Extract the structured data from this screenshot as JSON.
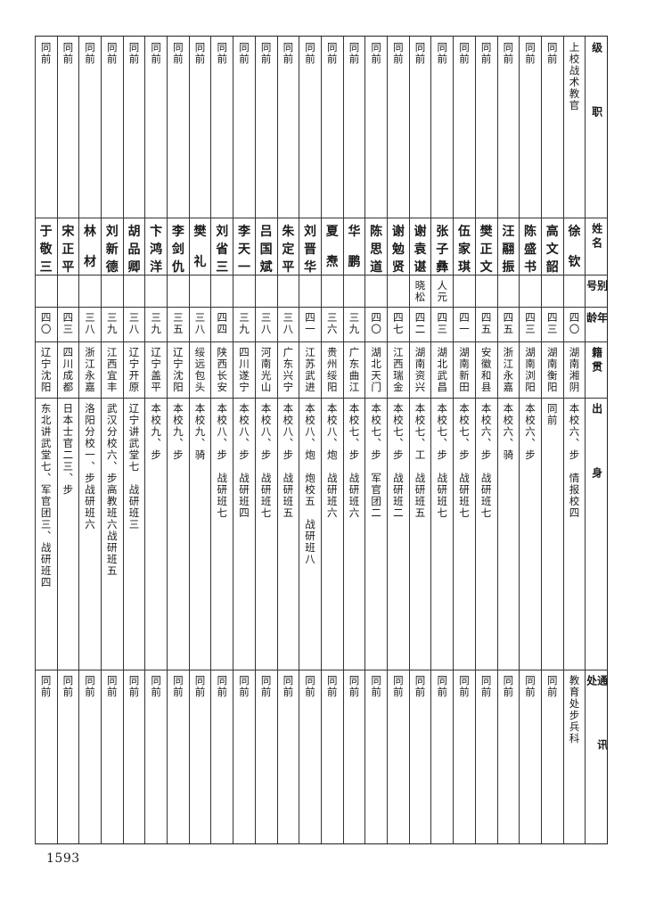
{
  "header": {
    "rank": "级职",
    "name": "姓名",
    "alias": "别号",
    "age": "年龄",
    "native": "籍贯",
    "origin": "出身",
    "contact": "通讯处"
  },
  "rows": [
    {
      "rank": "上校战术教官",
      "name": "徐钦",
      "alias": "",
      "age": "四〇",
      "native": "湖南湘阴",
      "origin": "本校六、步　情报校四",
      "contact": "教育处步兵科"
    },
    {
      "rank": "同前",
      "name": "高文韶",
      "alias": "",
      "age": "四三",
      "native": "湖南衡阳",
      "origin": "同前",
      "contact": "同前"
    },
    {
      "rank": "同前",
      "name": "陈盛书",
      "alias": "",
      "age": "四三",
      "native": "湖南浏阳",
      "origin": "本校六、步",
      "contact": "同前"
    },
    {
      "rank": "同前",
      "name": "汪翮振",
      "alias": "",
      "age": "四五",
      "native": "浙江永嘉",
      "origin": "本校六、骑",
      "contact": "同前"
    },
    {
      "rank": "同前",
      "name": "樊正文",
      "alias": "",
      "age": "四五",
      "native": "安徽和县",
      "origin": "本校六、步　战研班七",
      "contact": "同前"
    },
    {
      "rank": "同前",
      "name": "伍家琪",
      "alias": "",
      "age": "四一",
      "native": "湖南新田",
      "origin": "本校七、步　战研班七",
      "contact": "同前"
    },
    {
      "rank": "同前",
      "name": "张子彝",
      "alias": "人元",
      "age": "四三",
      "native": "湖北武昌",
      "origin": "本校七、步　战研班七",
      "contact": "同前"
    },
    {
      "rank": "同前",
      "name": "谢袁谌",
      "alias": "晓松",
      "age": "四二",
      "native": "湖南资兴",
      "origin": "本校七、工　战研班五",
      "contact": "同前"
    },
    {
      "rank": "同前",
      "name": "谢勉贤",
      "alias": "",
      "age": "四七",
      "native": "江西瑞金",
      "origin": "本校七、步　战研班二",
      "contact": "同前"
    },
    {
      "rank": "同前",
      "name": "陈思道",
      "alias": "",
      "age": "四〇",
      "native": "湖北天门",
      "origin": "本校七、步　军官团二",
      "contact": "同前"
    },
    {
      "rank": "同前",
      "name": "华鹏",
      "alias": "",
      "age": "三九",
      "native": "广东曲江",
      "origin": "本校七、步　战研班六",
      "contact": "同前"
    },
    {
      "rank": "同前",
      "name": "夏焘",
      "alias": "",
      "age": "三六",
      "native": "贵州绥阳",
      "origin": "本校八、炮　战研班六",
      "contact": "同前"
    },
    {
      "rank": "同前",
      "name": "刘晋华",
      "alias": "",
      "age": "四一",
      "native": "江苏武进",
      "origin": "本校八、炮　炮校五　战研班八",
      "contact": "同前"
    },
    {
      "rank": "同前",
      "name": "朱定平",
      "alias": "",
      "age": "三八",
      "native": "广东兴宁",
      "origin": "本校八、步　战研班五",
      "contact": "同前"
    },
    {
      "rank": "同前",
      "name": "吕国斌",
      "alias": "",
      "age": "三八",
      "native": "河南光山",
      "origin": "本校八、步　战研班七",
      "contact": "同前"
    },
    {
      "rank": "同前",
      "name": "李天一",
      "alias": "",
      "age": "三九",
      "native": "四川遂宁",
      "origin": "本校八、步　战研班四",
      "contact": "同前"
    },
    {
      "rank": "同前",
      "name": "刘省三",
      "alias": "",
      "age": "四四",
      "native": "陕西长安",
      "origin": "本校八、步　战研班七",
      "contact": "同前"
    },
    {
      "rank": "同前",
      "name": "樊礼",
      "alias": "",
      "age": "三八",
      "native": "绥远包头",
      "origin": "本校九、骑",
      "contact": "同前"
    },
    {
      "rank": "同前",
      "name": "李剑仇",
      "alias": "",
      "age": "三五",
      "native": "辽宁沈阳",
      "origin": "本校九、步",
      "contact": "同前"
    },
    {
      "rank": "同前",
      "name": "卞鸿洋",
      "alias": "",
      "age": "三九",
      "native": "辽宁盖平",
      "origin": "本校九、步",
      "contact": "同前"
    },
    {
      "rank": "同前",
      "name": "胡品卿",
      "alias": "",
      "age": "三八",
      "native": "辽宁开原",
      "origin": "辽宁讲武堂七　战研班三",
      "contact": "同前"
    },
    {
      "rank": "同前",
      "name": "刘新德",
      "alias": "",
      "age": "三九",
      "native": "江西宜丰",
      "origin": "武汉分校六、步高教班六战研班五",
      "contact": "同前"
    },
    {
      "rank": "同前",
      "name": "林材",
      "alias": "",
      "age": "三八",
      "native": "浙江永嘉",
      "origin": "洛阳分校一、步战研班六",
      "contact": "同前"
    },
    {
      "rank": "同前",
      "name": "宋正平",
      "alias": "",
      "age": "四三",
      "native": "四川成都",
      "origin": "日本士官二三、步",
      "contact": "同前"
    },
    {
      "rank": "同前",
      "name": "于敬三",
      "alias": "",
      "age": "四〇",
      "native": "辽宁沈阳",
      "origin": "东北讲武堂七、军官团三、战研班四",
      "contact": "同前"
    }
  ],
  "page_number": "1593"
}
